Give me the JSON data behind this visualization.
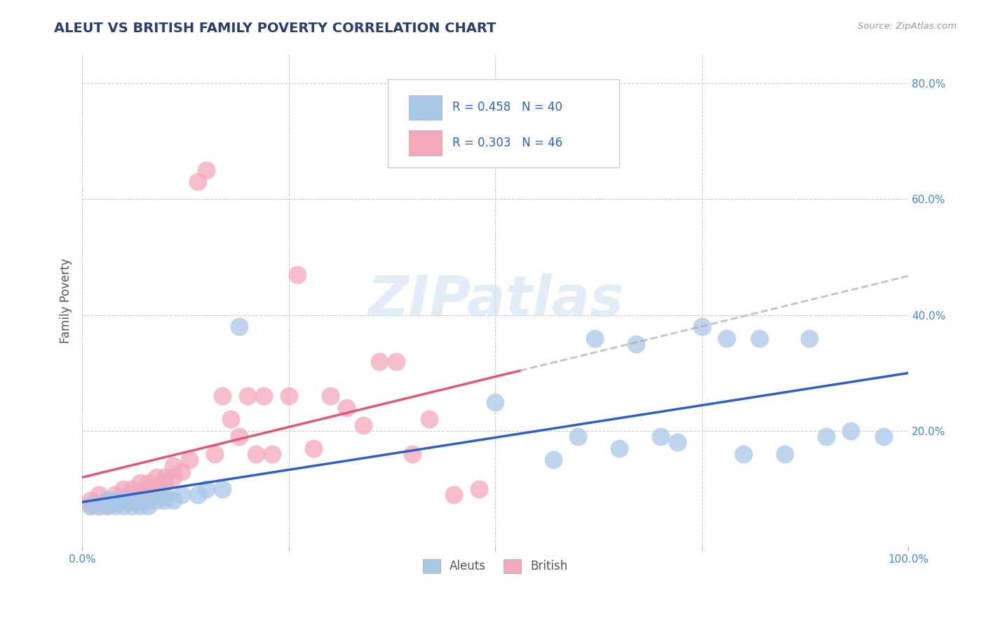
{
  "title": "ALEUT VS BRITISH FAMILY POVERTY CORRELATION CHART",
  "source": "Source: ZipAtlas.com",
  "ylabel": "Family Poverty",
  "xlim": [
    0.0,
    1.0
  ],
  "ylim": [
    0.0,
    0.85
  ],
  "xticks": [
    0.0,
    0.25,
    0.5,
    0.75,
    1.0
  ],
  "xticklabels": [
    "0.0%",
    "",
    "",
    "",
    "100.0%"
  ],
  "yticks": [
    0.0,
    0.2,
    0.4,
    0.6,
    0.8
  ],
  "yticklabels": [
    "",
    "20.0%",
    "40.0%",
    "60.0%",
    "80.0%"
  ],
  "aleut_color": "#a8c8e8",
  "british_color": "#f4a8bc",
  "aleut_line_color": "#3060c0",
  "british_line_color": "#e05878",
  "aleut_R": 0.458,
  "aleut_N": 40,
  "british_R": 0.303,
  "british_N": 46,
  "watermark": "ZIPatlas",
  "grid_color": "#cccccc",
  "background_color": "#ffffff",
  "aleut_x": [
    0.01,
    0.02,
    0.03,
    0.03,
    0.04,
    0.04,
    0.05,
    0.05,
    0.06,
    0.06,
    0.07,
    0.07,
    0.08,
    0.08,
    0.09,
    0.1,
    0.1,
    0.11,
    0.12,
    0.14,
    0.15,
    0.17,
    0.19,
    0.5,
    0.57,
    0.6,
    0.62,
    0.65,
    0.67,
    0.7,
    0.72,
    0.75,
    0.78,
    0.8,
    0.82,
    0.85,
    0.88,
    0.9,
    0.93,
    0.97
  ],
  "aleut_y": [
    0.07,
    0.07,
    0.07,
    0.08,
    0.07,
    0.08,
    0.07,
    0.08,
    0.07,
    0.08,
    0.07,
    0.08,
    0.08,
    0.07,
    0.08,
    0.08,
    0.09,
    0.08,
    0.09,
    0.09,
    0.1,
    0.1,
    0.38,
    0.25,
    0.15,
    0.19,
    0.36,
    0.17,
    0.35,
    0.19,
    0.18,
    0.38,
    0.36,
    0.16,
    0.36,
    0.16,
    0.36,
    0.19,
    0.2,
    0.19
  ],
  "british_x": [
    0.01,
    0.01,
    0.02,
    0.02,
    0.03,
    0.03,
    0.04,
    0.04,
    0.05,
    0.05,
    0.06,
    0.06,
    0.07,
    0.07,
    0.08,
    0.08,
    0.09,
    0.09,
    0.1,
    0.1,
    0.11,
    0.11,
    0.12,
    0.13,
    0.14,
    0.15,
    0.16,
    0.17,
    0.18,
    0.19,
    0.2,
    0.21,
    0.22,
    0.23,
    0.25,
    0.26,
    0.28,
    0.3,
    0.32,
    0.34,
    0.36,
    0.38,
    0.4,
    0.42,
    0.45,
    0.48
  ],
  "british_y": [
    0.07,
    0.08,
    0.07,
    0.09,
    0.07,
    0.08,
    0.08,
    0.09,
    0.08,
    0.1,
    0.09,
    0.1,
    0.09,
    0.11,
    0.1,
    0.11,
    0.1,
    0.12,
    0.11,
    0.12,
    0.12,
    0.14,
    0.13,
    0.15,
    0.63,
    0.65,
    0.16,
    0.26,
    0.22,
    0.19,
    0.26,
    0.16,
    0.26,
    0.16,
    0.26,
    0.47,
    0.17,
    0.26,
    0.24,
    0.21,
    0.32,
    0.32,
    0.16,
    0.22,
    0.09,
    0.1
  ]
}
